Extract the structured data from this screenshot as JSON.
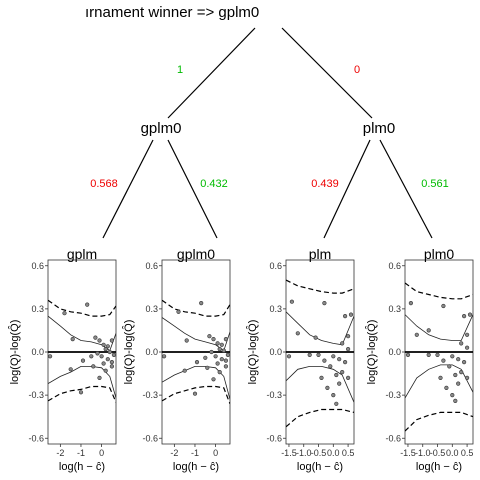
{
  "tree": {
    "title": "ırnament winner  =>  gplm0",
    "root": "gplm0",
    "left": {
      "label": "gplm0",
      "edge_prob": "1",
      "edge_color": "#00bb00",
      "children": [
        {
          "label": "gplm",
          "edge_prob": "0.568",
          "edge_color": "#ee0000"
        },
        {
          "label": "gplm0",
          "edge_prob": "0.432",
          "edge_color": "#00bb00"
        }
      ]
    },
    "right": {
      "label": "plm0",
      "edge_prob": "0",
      "edge_color": "#ee0000",
      "children": [
        {
          "label": "plm",
          "edge_prob": "0.439",
          "edge_color": "#ee0000"
        },
        {
          "label": "plm0",
          "edge_prob": "0.561",
          "edge_color": "#00bb00"
        }
      ]
    }
  },
  "chart_data": [
    {
      "type": "scatter",
      "title": "gplm",
      "xlabel": "log(h − ĉ)",
      "ylabel": "log(Q)-log(Q̂)",
      "xlim": [
        -2.6,
        0.7
      ],
      "ylim": [
        -0.64,
        0.64
      ],
      "xticks": [
        -2,
        -1,
        0
      ],
      "xtick_labels": [
        "-2",
        "-1",
        "0"
      ],
      "yticks": [
        -0.6,
        -0.3,
        0.0,
        0.3,
        0.6
      ],
      "ytick_labels": [
        "-0.6",
        "-0.3",
        "0.0",
        "0.3",
        "0.6"
      ],
      "points": [
        [
          -0.7,
          0.33
        ],
        [
          -1.8,
          0.27
        ],
        [
          -0.3,
          0.1
        ],
        [
          -1.4,
          0.09
        ],
        [
          -0.1,
          0.08
        ],
        [
          0.1,
          0.05
        ],
        [
          0.3,
          0.04
        ],
        [
          0.5,
          0.08
        ],
        [
          0.2,
          0.02
        ],
        [
          0.4,
          0.0
        ],
        [
          -0.2,
          -0.01
        ],
        [
          0.6,
          -0.02
        ],
        [
          0.0,
          -0.03
        ],
        [
          -0.5,
          -0.03
        ],
        [
          0.3,
          -0.05
        ],
        [
          -0.9,
          -0.06
        ],
        [
          0.1,
          -0.08
        ],
        [
          0.5,
          -0.1
        ],
        [
          -0.4,
          -0.1
        ],
        [
          0.2,
          -0.13
        ],
        [
          -0.1,
          -0.18
        ],
        [
          -2.5,
          -0.03
        ],
        [
          0.5,
          -0.07
        ],
        [
          -1.5,
          -0.12
        ],
        [
          -1.0,
          -0.28
        ]
      ],
      "median_line": [
        [
          -2.6,
          0.25
        ],
        [
          -2.0,
          0.18
        ],
        [
          -1.5,
          0.12
        ],
        [
          -1.0,
          0.08
        ],
        [
          -0.5,
          0.07
        ],
        [
          0.0,
          0.05
        ],
        [
          0.4,
          0.01
        ],
        [
          0.7,
          0.13
        ]
      ],
      "lower_line": [
        [
          -2.6,
          -0.22
        ],
        [
          -2.0,
          -0.17
        ],
        [
          -1.5,
          -0.14
        ],
        [
          -1.0,
          -0.1
        ],
        [
          -0.5,
          -0.1
        ],
        [
          0.0,
          -0.11
        ],
        [
          0.4,
          -0.17
        ],
        [
          0.7,
          -0.32
        ]
      ],
      "upper_dashed": [
        [
          -2.6,
          0.36
        ],
        [
          -2.0,
          0.3
        ],
        [
          -1.5,
          0.28
        ],
        [
          -1.0,
          0.27
        ],
        [
          -0.5,
          0.25
        ],
        [
          0.0,
          0.25
        ],
        [
          0.4,
          0.26
        ],
        [
          0.7,
          0.32
        ]
      ],
      "lower_dashed": [
        [
          -2.6,
          -0.34
        ],
        [
          -2.0,
          -0.29
        ],
        [
          -1.5,
          -0.27
        ],
        [
          -1.0,
          -0.26
        ],
        [
          -0.5,
          -0.24
        ],
        [
          0.0,
          -0.24
        ],
        [
          0.4,
          -0.25
        ],
        [
          0.7,
          -0.35
        ]
      ],
      "hline": 0.0
    },
    {
      "type": "scatter",
      "title": "gplm0",
      "xlabel": "log(h − ĉ)",
      "ylabel": "log(Q)-log(Q̂)",
      "xlim": [
        -2.6,
        0.7
      ],
      "ylim": [
        -0.64,
        0.64
      ],
      "xticks": [
        -2,
        -1,
        0
      ],
      "xtick_labels": [
        "-2",
        "-1",
        "0"
      ],
      "yticks": [
        -0.6,
        -0.3,
        0.0,
        0.3,
        0.6
      ],
      "ytick_labels": [
        "-0.6",
        "-0.3",
        "0.0",
        "0.3",
        "0.6"
      ],
      "points": [
        [
          -0.7,
          0.34
        ],
        [
          -1.8,
          0.28
        ],
        [
          -0.3,
          0.11
        ],
        [
          -1.4,
          0.08
        ],
        [
          -0.1,
          0.09
        ],
        [
          0.1,
          0.06
        ],
        [
          0.3,
          0.05
        ],
        [
          0.5,
          0.09
        ],
        [
          0.2,
          0.02
        ],
        [
          0.4,
          0.01
        ],
        [
          -0.2,
          0.0
        ],
        [
          0.6,
          -0.02
        ],
        [
          0.0,
          -0.03
        ],
        [
          -0.5,
          -0.04
        ],
        [
          0.3,
          -0.05
        ],
        [
          -0.9,
          -0.07
        ],
        [
          0.1,
          -0.08
        ],
        [
          0.5,
          -0.1
        ],
        [
          -0.4,
          -0.11
        ],
        [
          0.2,
          -0.14
        ],
        [
          -0.1,
          -0.19
        ],
        [
          -2.5,
          -0.03
        ],
        [
          0.5,
          -0.06
        ],
        [
          -1.5,
          -0.13
        ],
        [
          -1.0,
          -0.29
        ]
      ],
      "median_line": [
        [
          -2.6,
          0.24
        ],
        [
          -2.0,
          0.18
        ],
        [
          -1.5,
          0.13
        ],
        [
          -1.0,
          0.09
        ],
        [
          -0.5,
          0.07
        ],
        [
          0.0,
          0.05
        ],
        [
          0.4,
          0.01
        ],
        [
          0.7,
          0.14
        ]
      ],
      "lower_line": [
        [
          -2.6,
          -0.21
        ],
        [
          -2.0,
          -0.16
        ],
        [
          -1.5,
          -0.13
        ],
        [
          -1.0,
          -0.1
        ],
        [
          -0.5,
          -0.1
        ],
        [
          0.0,
          -0.11
        ],
        [
          0.4,
          -0.17
        ],
        [
          0.7,
          -0.33
        ]
      ],
      "upper_dashed": [
        [
          -2.6,
          0.36
        ],
        [
          -2.0,
          0.3
        ],
        [
          -1.5,
          0.28
        ],
        [
          -1.0,
          0.27
        ],
        [
          -0.5,
          0.25
        ],
        [
          0.0,
          0.25
        ],
        [
          0.4,
          0.26
        ],
        [
          0.7,
          0.33
        ]
      ],
      "lower_dashed": [
        [
          -2.6,
          -0.34
        ],
        [
          -2.0,
          -0.29
        ],
        [
          -1.5,
          -0.27
        ],
        [
          -1.0,
          -0.25
        ],
        [
          -0.5,
          -0.24
        ],
        [
          0.0,
          -0.24
        ],
        [
          0.4,
          -0.25
        ],
        [
          0.7,
          -0.36
        ]
      ],
      "hline": 0.0
    },
    {
      "type": "scatter",
      "title": "plm",
      "xlabel": "log(h − ĉ)",
      "ylabel": "log(Q)-log(Q̂)",
      "xlim": [
        -1.6,
        0.7
      ],
      "ylim": [
        -0.64,
        0.64
      ],
      "xticks": [
        -1.5,
        -1.0,
        -0.5,
        0.0,
        0.5
      ],
      "xtick_labels": [
        "-1.5",
        "-1.0",
        "-0.5",
        "0.0",
        "0.5"
      ],
      "yticks": [
        -0.6,
        -0.3,
        0.0,
        0.3,
        0.6
      ],
      "ytick_labels": [
        "-0.6",
        "-0.3",
        "0.0",
        "0.3",
        "0.6"
      ],
      "points": [
        [
          -1.4,
          0.35
        ],
        [
          -0.3,
          0.34
        ],
        [
          -1.2,
          0.13
        ],
        [
          -0.6,
          0.1
        ],
        [
          0.5,
          0.11
        ],
        [
          0.4,
          0.25
        ],
        [
          0.6,
          0.26
        ],
        [
          0.3,
          0.06
        ],
        [
          0.5,
          0.02
        ],
        [
          -0.8,
          -0.02
        ],
        [
          -0.5,
          -0.02
        ],
        [
          0.0,
          -0.03
        ],
        [
          0.2,
          -0.05
        ],
        [
          -0.3,
          -0.06
        ],
        [
          0.4,
          -0.07
        ],
        [
          -0.1,
          -0.1
        ],
        [
          0.3,
          -0.14
        ],
        [
          0.1,
          -0.16
        ],
        [
          -0.4,
          -0.18
        ],
        [
          0.5,
          -0.18
        ],
        [
          0.2,
          -0.22
        ],
        [
          -0.2,
          -0.25
        ],
        [
          0.0,
          -0.3
        ],
        [
          -1.5,
          -0.03
        ],
        [
          0.1,
          -0.36
        ]
      ],
      "median_line": [
        [
          -1.6,
          0.28
        ],
        [
          -1.2,
          0.2
        ],
        [
          -0.8,
          0.12
        ],
        [
          -0.4,
          0.08
        ],
        [
          0.0,
          0.06
        ],
        [
          0.3,
          0.05
        ],
        [
          0.7,
          0.25
        ]
      ],
      "lower_line": [
        [
          -1.6,
          -0.2
        ],
        [
          -1.2,
          -0.12
        ],
        [
          -0.8,
          -0.1
        ],
        [
          -0.4,
          -0.1
        ],
        [
          0.0,
          -0.12
        ],
        [
          0.3,
          -0.16
        ],
        [
          0.7,
          -0.35
        ]
      ],
      "upper_dashed": [
        [
          -1.6,
          0.5
        ],
        [
          -1.2,
          0.46
        ],
        [
          -0.8,
          0.44
        ],
        [
          -0.4,
          0.42
        ],
        [
          0.0,
          0.41
        ],
        [
          0.3,
          0.41
        ],
        [
          0.7,
          0.44
        ]
      ],
      "lower_dashed": [
        [
          -1.6,
          -0.52
        ],
        [
          -1.2,
          -0.45
        ],
        [
          -0.8,
          -0.42
        ],
        [
          -0.4,
          -0.4
        ],
        [
          0.0,
          -0.4
        ],
        [
          0.3,
          -0.4
        ],
        [
          0.7,
          -0.42
        ]
      ],
      "hline": 0.0
    },
    {
      "type": "scatter",
      "title": "plm0",
      "xlabel": "log(h − ĉ)",
      "ylabel": "log(Q)-log(Q̂)",
      "xlim": [
        -1.6,
        0.7
      ],
      "ylim": [
        -0.64,
        0.64
      ],
      "xticks": [
        -1.5,
        -1.0,
        -0.5,
        0.0,
        0.5
      ],
      "xtick_labels": [
        "-1.5",
        "-1.0",
        "-0.5",
        "0.0",
        "0.5"
      ],
      "yticks": [
        -0.6,
        -0.3,
        0.0,
        0.3,
        0.6
      ],
      "ytick_labels": [
        "-0.6",
        "-0.3",
        "0.0",
        "0.3",
        "0.6"
      ],
      "points": [
        [
          -1.4,
          0.34
        ],
        [
          -0.3,
          0.32
        ],
        [
          -1.2,
          0.12
        ],
        [
          -0.8,
          0.15
        ],
        [
          0.5,
          0.12
        ],
        [
          0.4,
          0.25
        ],
        [
          0.6,
          0.26
        ],
        [
          0.3,
          0.06
        ],
        [
          0.5,
          0.03
        ],
        [
          -0.8,
          -0.02
        ],
        [
          -0.5,
          -0.02
        ],
        [
          0.0,
          -0.03
        ],
        [
          0.2,
          -0.05
        ],
        [
          -0.3,
          -0.06
        ],
        [
          0.4,
          -0.07
        ],
        [
          -0.1,
          -0.1
        ],
        [
          0.3,
          -0.14
        ],
        [
          0.1,
          -0.16
        ],
        [
          -0.4,
          -0.18
        ],
        [
          0.5,
          -0.18
        ],
        [
          0.2,
          -0.22
        ],
        [
          -0.2,
          -0.25
        ],
        [
          0.0,
          -0.3
        ],
        [
          -1.5,
          -0.02
        ],
        [
          0.1,
          -0.34
        ]
      ],
      "median_line": [
        [
          -1.6,
          0.26
        ],
        [
          -1.2,
          0.18
        ],
        [
          -0.8,
          0.12
        ],
        [
          -0.4,
          0.09
        ],
        [
          0.0,
          0.08
        ],
        [
          0.3,
          0.08
        ],
        [
          0.7,
          0.26
        ]
      ],
      "lower_line": [
        [
          -1.6,
          -0.32
        ],
        [
          -1.2,
          -0.18
        ],
        [
          -0.8,
          -0.12
        ],
        [
          -0.4,
          -0.09
        ],
        [
          0.0,
          -0.09
        ],
        [
          0.3,
          -0.12
        ],
        [
          0.7,
          -0.28
        ]
      ],
      "upper_dashed": [
        [
          -1.6,
          0.48
        ],
        [
          -1.2,
          0.42
        ],
        [
          -0.8,
          0.4
        ],
        [
          -0.4,
          0.38
        ],
        [
          0.0,
          0.37
        ],
        [
          0.3,
          0.37
        ],
        [
          0.7,
          0.4
        ]
      ],
      "lower_dashed": [
        [
          -1.6,
          -0.55
        ],
        [
          -1.2,
          -0.47
        ],
        [
          -0.8,
          -0.44
        ],
        [
          -0.4,
          -0.42
        ],
        [
          0.0,
          -0.42
        ],
        [
          0.3,
          -0.42
        ],
        [
          0.7,
          -0.45
        ]
      ],
      "hline": 0.0
    }
  ]
}
